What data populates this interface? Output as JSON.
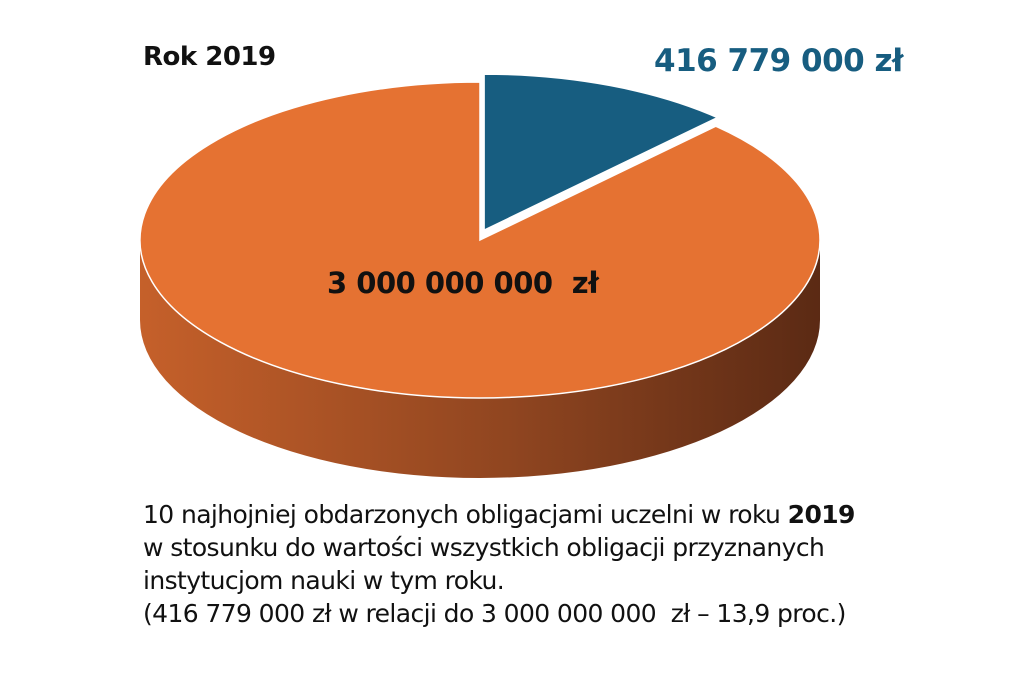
{
  "chart_data": {
    "type": "pie",
    "title": "Rok 2019",
    "slices": [
      {
        "label": "416 779 000 zł",
        "value": 416779000,
        "color": "#175d80"
      },
      {
        "label": "3 000 000 000  zł",
        "value": 3000000000,
        "color": "#e57232"
      }
    ],
    "note": "share 13,9 proc.",
    "style": "3d"
  },
  "caption": {
    "line1_pre": "10 najhojniej obdarzonych obligacjami uczelni w roku ",
    "line1_bold": "2019",
    "line2": "w stosunku do wartości wszystkich obligacji przyznanych",
    "line3": "instytucjom nauki w tym roku.",
    "line4": "(416 779 000 zł w relacji do 3 000 000 000  zł – 13,9 proc.)"
  },
  "colors": {
    "accent_blue": "#175d80",
    "accent_orange": "#e57232",
    "side_dark": "#5b2a14",
    "side_light": "#c5602a"
  }
}
